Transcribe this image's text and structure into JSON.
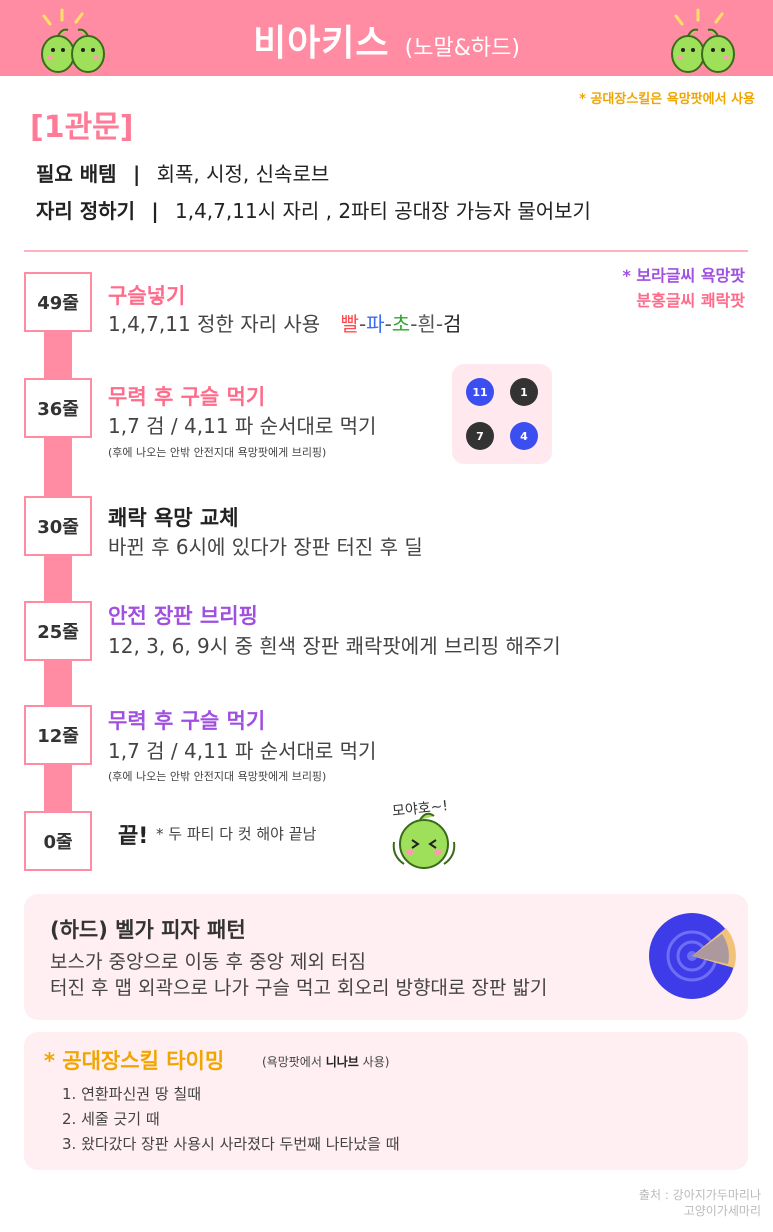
{
  "header": {
    "title": "비아키스",
    "subtitle": "(노말&하드)"
  },
  "note_top": "* 공대장스킬은 욕망팟에서 사용",
  "stage": {
    "title": "[1관문]",
    "items_label": "필요 배템",
    "items_sep": "|",
    "items_value": "회폭, 시정, 신속로브",
    "seat_label": "자리 정하기",
    "seat_sep": "|",
    "seat_value": "1,4,7,11시 자리 , 2파티 공대장 가능자 물어보기"
  },
  "legend": {
    "line1": "* 보라글씨 욕망팟",
    "line2": "분홍글씨 쾌락팟"
  },
  "timeline": [
    {
      "label": "49줄",
      "title": "구슬넣기",
      "desc": "1,4,7,11 정한 자리 사용",
      "color_sequence": [
        "빨",
        "-",
        "파",
        "-",
        "초",
        "-",
        "흰",
        "-",
        "검"
      ]
    },
    {
      "label": "36줄",
      "title": "무력 후 구슬 먹기",
      "desc": "1,7 검 / 4,11 파 순서대로 먹기",
      "small": "(후에 나오는 안밖 안전지대 욕망팟에게 브리핑)"
    },
    {
      "label": "30줄",
      "title": "쾌락 욕망 교체",
      "desc": "바뀐 후 6시에 있다가 장판 터진 후 딜"
    },
    {
      "label": "25줄",
      "title": "안전 장판 브리핑",
      "desc": "12, 3, 6, 9시 중 흰색 장판 쾌락팟에게 브리핑 해주기"
    },
    {
      "label": "12줄",
      "title": "무력 후 구슬 먹기",
      "desc": "1,7 검 / 4,11 파 순서대로 먹기",
      "small": "(후에 나오는 안밖 안전지대 욕망팟에게 브리핑)"
    },
    {
      "label": "0줄",
      "title": "끝!",
      "note": "* 두 파티 다 컷 해야 끝남"
    }
  ],
  "positions": {
    "top_left": "11",
    "top_right": "1",
    "bottom_left": "7",
    "bottom_right": "4"
  },
  "mascot_speech": "모야호~!",
  "hard_card": {
    "title": "(하드) 벨가 피자 패턴",
    "line1": "보스가 중앙으로 이동 후 중앙 제외 터짐",
    "line2": "터진 후 맵 외곽으로 나가 구슬 먹고 회오리 방향대로 장판 밟기"
  },
  "leader_card": {
    "title": "* 공대장스킬 타이밍",
    "sub_prefix": "(욕망팟에서",
    "sub_highlight": "니나브",
    "sub_suffix": "사용)",
    "items": [
      "1. 연환파신권 땅 칠때",
      "2. 세줄 긋기 때",
      "3. 왔다갔다 장판 사용시 사라졌다 두번째 나타났을 때"
    ]
  },
  "credit": {
    "line1": "출처 : 강아지가두마리나",
    "line2": "고양이가세마리"
  },
  "colors": {
    "header_pink": "#ff8ca3",
    "title_pink": "#ff6b8a",
    "purple": "#a050e0",
    "orange": "#f0a500",
    "card_bg": "#ffeef2",
    "dot_blue": "#3b4ff0"
  }
}
